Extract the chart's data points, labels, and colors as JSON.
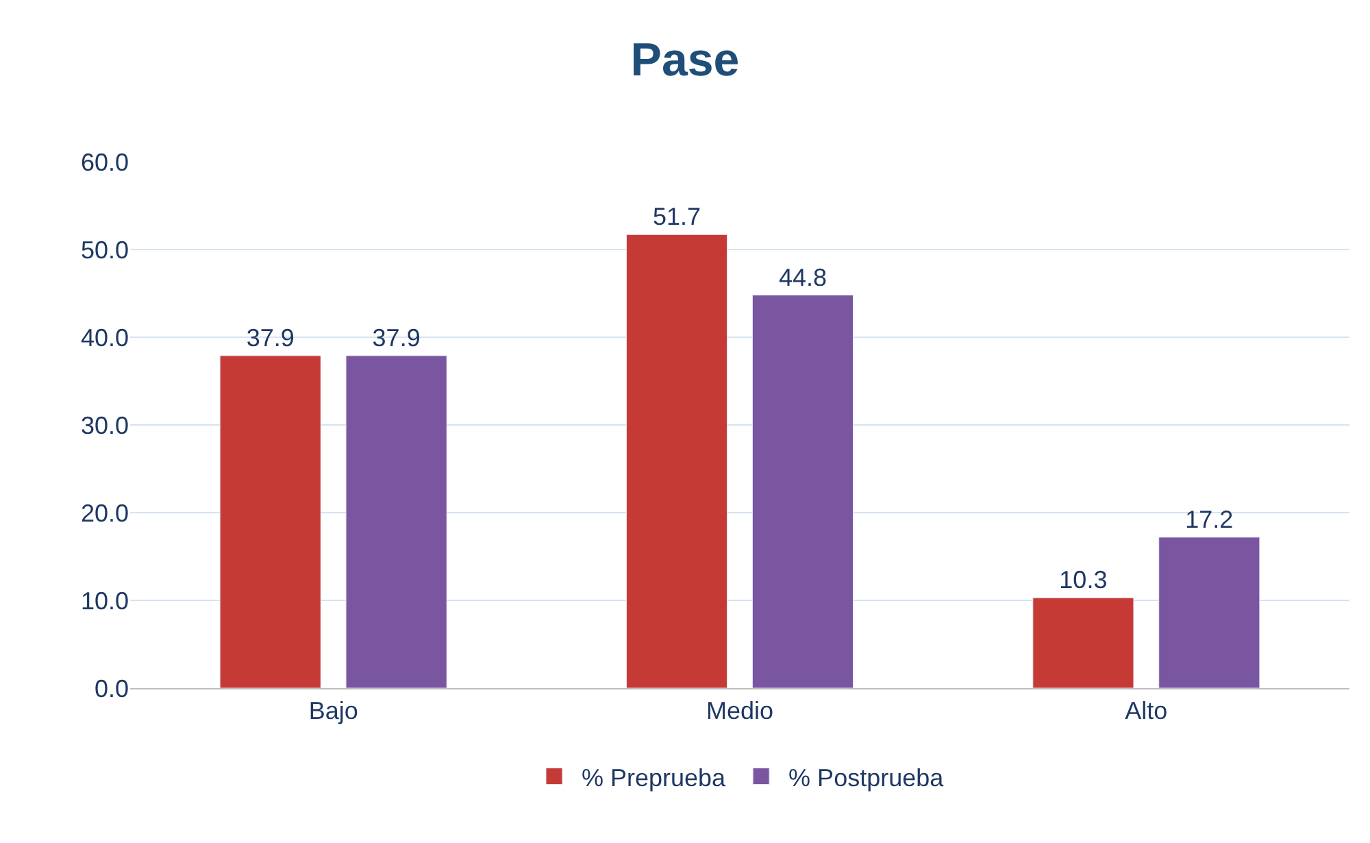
{
  "chart_data": {
    "type": "bar",
    "title": "Pase",
    "categories": [
      "Bajo",
      "Medio",
      "Alto"
    ],
    "series": [
      {
        "name": "% Preprueba",
        "color": "#c63a36",
        "values": [
          37.9,
          51.7,
          10.3
        ]
      },
      {
        "name": "% Postprueba",
        "color": "#7a55a0",
        "values": [
          37.9,
          44.8,
          17.2
        ]
      }
    ],
    "ylim": [
      0,
      60
    ],
    "yticks": [
      {
        "value": 0,
        "label": "0.0"
      },
      {
        "value": 10,
        "label": "10.0"
      },
      {
        "value": 20,
        "label": "20.0"
      },
      {
        "value": 30,
        "label": "30.0"
      },
      {
        "value": 40,
        "label": "40.0"
      },
      {
        "value": 50,
        "label": "50.0"
      },
      {
        "value": 60,
        "label": "60.0"
      }
    ],
    "grid": "y",
    "legend": "bottom",
    "data_labels": true
  }
}
